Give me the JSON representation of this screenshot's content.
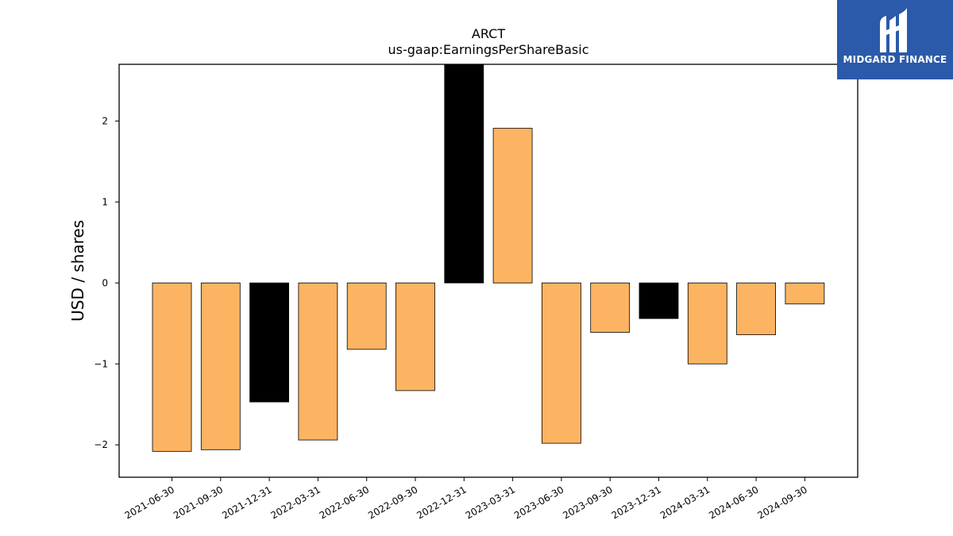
{
  "brand": {
    "name": "MIDGARD FINANCE",
    "bg_color": "#2b5aaa",
    "icon": "midgard-logo-icon"
  },
  "chart_data": {
    "type": "bar",
    "title": "ARCT",
    "subtitle": "us-gaap:EarningsPerShareBasic",
    "xlabel": "",
    "ylabel": "USD / shares",
    "categories": [
      "2021-06-30",
      "2021-09-30",
      "2021-12-31",
      "2022-03-31",
      "2022-06-30",
      "2022-09-30",
      "2022-12-31",
      "2023-03-31",
      "2023-06-30",
      "2023-09-30",
      "2023-12-31",
      "2024-03-31",
      "2024-06-30",
      "2024-09-30"
    ],
    "values": [
      -2.08,
      -2.06,
      -1.47,
      -1.94,
      -0.82,
      -1.33,
      2.7,
      1.91,
      -1.98,
      -0.61,
      -0.44,
      -1.0,
      -0.64,
      -0.26
    ],
    "bar_colors": [
      "#fdb462",
      "#fdb462",
      "#000000",
      "#fdb462",
      "#fdb462",
      "#fdb462",
      "#000000",
      "#fdb462",
      "#fdb462",
      "#fdb462",
      "#000000",
      "#fdb462",
      "#fdb462",
      "#fdb462"
    ],
    "ylim": [
      -2.4,
      2.7
    ],
    "yticks": [
      -2,
      -1,
      0,
      1,
      2
    ],
    "ytick_labels": [
      "−2",
      "−1",
      "0",
      "1",
      "2"
    ],
    "grid": false,
    "legend": "none"
  }
}
